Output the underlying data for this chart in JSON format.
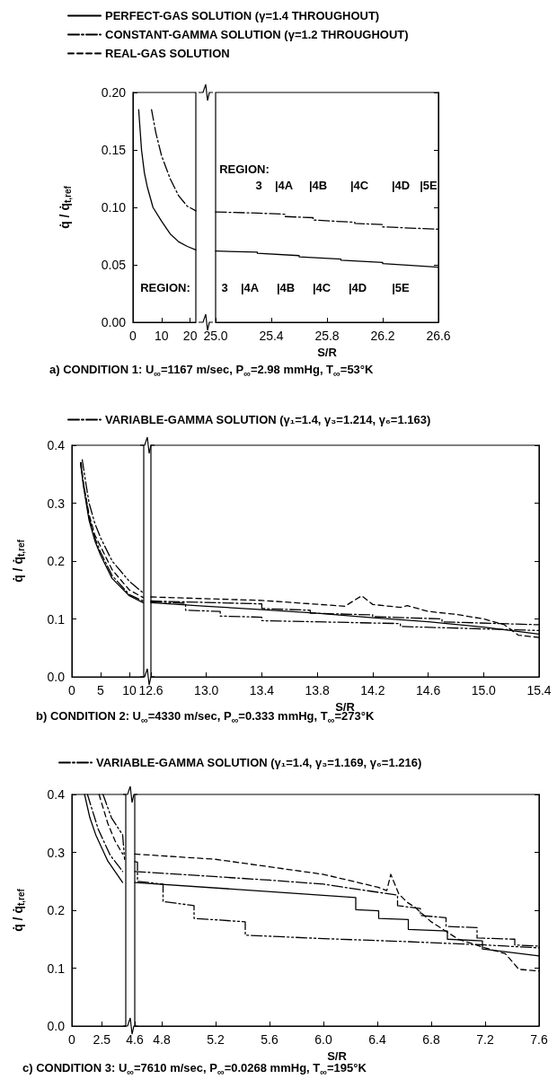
{
  "chart_data": [
    {
      "type": "line",
      "ylabel": "q̇ / q̇$_{t,ref}$",
      "xlim": [
        0,
        22
      ],
      "xticks": [
        0,
        10,
        20
      ],
      "ylim": [
        0,
        0.2
      ],
      "yticks": [
        {
          "value": 0,
          "label": "0.00"
        },
        {
          "value": 0.05,
          "label": "0.05"
        },
        {
          "value": 0.1,
          "label": "0.10"
        },
        {
          "value": 0.15,
          "label": "0.15"
        },
        {
          "value": 0.2,
          "label": "0.20"
        }
      ],
      "grid": false,
      "marker": "none",
      "legend": false,
      "series": [
        {
          "color": "#000000",
          "line_style": "solid",
          "x": [
            2,
            3,
            4,
            5,
            7,
            10,
            13,
            16,
            19,
            22
          ],
          "values": [
            0.185,
            0.15,
            0.13,
            0.118,
            0.1,
            0.088,
            0.077,
            0.07,
            0.066,
            0.063
          ]
        },
        {
          "color": "#000000",
          "line_style": "dashdot",
          "x": [
            6.5,
            8,
            10,
            13,
            16,
            19,
            22
          ],
          "values": [
            0.185,
            0.165,
            0.145,
            0.125,
            0.11,
            0.101,
            0.097
          ]
        }
      ],
      "annotations": [
        "REGION:"
      ]
    },
    {
      "type": "line",
      "xlabel": "S/R",
      "xlim": [
        25,
        26.6
      ],
      "xticks": [
        {
          "value": 25,
          "label": "25.0"
        },
        25.4,
        25.8,
        26.2,
        26.6
      ],
      "ylim": [
        0,
        0.2
      ],
      "yticks": [
        0,
        0.05,
        0.1,
        0.15,
        0.2
      ],
      "tick_labels": "x",
      "grid": false,
      "marker": "none",
      "legend": "top left",
      "series": [
        {
          "name": "PERFECT-GAS SOLUTION (γ=1.4 THROUGHOUT)",
          "color": "#000000",
          "line_style": "solid",
          "x": [
            25,
            25.3,
            25.3,
            25.6,
            25.6,
            25.9,
            25.9,
            26.2,
            26.2,
            26.6
          ],
          "values": [
            0.062,
            0.061,
            0.06,
            0.058,
            0.057,
            0.055,
            0.054,
            0.052,
            0.051,
            0.048
          ]
        },
        {
          "name": "CONSTANT-GAMMA SOLUTION (γ=1.2 THROUGHOUT)",
          "color": "#000000",
          "line_style": "dashdot",
          "x": [
            25,
            25.3,
            25.5,
            25.5,
            25.7,
            25.7,
            26,
            26,
            26.2,
            26.2,
            26.6
          ],
          "values": [
            0.096,
            0.095,
            0.094,
            0.092,
            0.091,
            0.089,
            0.087,
            0.086,
            0.085,
            0.083,
            0.081
          ]
        },
        {
          "name": "REAL-GAS SOLUTION",
          "color": "#000000",
          "line_style": "dashed"
        }
      ],
      "annotations": [
        "REGION:",
        "3",
        "|4A",
        "|4B",
        "|4C",
        "|4D",
        "|5E",
        "3",
        "|4A",
        "|4B",
        "|4C",
        "|4D",
        "|5E",
        "a) CONDITION 1: U$_{∞}$=1167 m/sec, P$_{∞}$=2.98 mmHg, T$_{∞}$=53°K"
      ]
    },
    {
      "type": "line",
      "ylabel": "q̇ / q̇$_{t,ref}$",
      "xlim": [
        0,
        12.5
      ],
      "xticks": [
        0,
        5,
        10
      ],
      "ylim": [
        0,
        0.4
      ],
      "yticks": [
        {
          "value": 0,
          "label": "0.0"
        },
        0.1,
        0.2,
        0.3,
        0.4
      ],
      "grid": false,
      "marker": "none",
      "legend": false,
      "series": [
        {
          "color": "#000000",
          "line_style": "solid",
          "x": [
            1.5,
            2,
            3,
            4,
            5,
            7,
            10,
            12.4
          ],
          "values": [
            0.37,
            0.33,
            0.27,
            0.235,
            0.21,
            0.17,
            0.14,
            0.128
          ]
        },
        {
          "color": "#000000",
          "line_style": "dashdotdot",
          "x": [
            1.8,
            2.5,
            3,
            4,
            5,
            7,
            10,
            12.4
          ],
          "values": [
            0.375,
            0.33,
            0.3,
            0.265,
            0.24,
            0.2,
            0.165,
            0.145
          ]
        },
        {
          "color": "#000000",
          "line_style": "dashed",
          "x": [
            1.6,
            2,
            3,
            4,
            5,
            7,
            10,
            12.4
          ],
          "values": [
            0.37,
            0.335,
            0.28,
            0.245,
            0.225,
            0.185,
            0.15,
            0.137
          ]
        },
        {
          "color": "#000000",
          "line_style": "dashdot",
          "x": [
            1.5,
            2,
            3,
            4,
            5,
            7,
            10,
            12.4
          ],
          "values": [
            0.37,
            0.335,
            0.275,
            0.24,
            0.215,
            0.175,
            0.142,
            0.131
          ]
        }
      ]
    },
    {
      "type": "line",
      "xlabel": "S/R",
      "xlim": [
        12.6,
        15.4
      ],
      "xticks": [
        12.6,
        {
          "value": 13,
          "label": "13.0"
        },
        13.4,
        13.8,
        14.2,
        14.6,
        {
          "value": 15,
          "label": "15.0"
        },
        15.4
      ],
      "ylim": [
        0,
        0.4
      ],
      "yticks": [
        0,
        0.1,
        0.2,
        0.3,
        0.4
      ],
      "tick_labels": "x",
      "grid": false,
      "marker": "none",
      "legend": "top left",
      "series": [
        {
          "color": "#000000",
          "line_style": "solid",
          "x": [
            12.6,
            13,
            13.4,
            13.8,
            14.2,
            14.6,
            15,
            15.4
          ],
          "values": [
            0.128,
            0.122,
            0.116,
            0.11,
            0.102,
            0.095,
            0.086,
            0.074
          ]
        },
        {
          "color": "#000000",
          "line_style": "dashdotdot",
          "x": [
            12.6,
            12.85,
            12.85,
            13.1,
            13.1,
            13.4,
            13.4,
            14.4,
            14.4,
            15.4
          ],
          "values": [
            0.13,
            0.127,
            0.115,
            0.113,
            0.105,
            0.103,
            0.097,
            0.092,
            0.087,
            0.08
          ]
        },
        {
          "color": "#000000",
          "line_style": "dashed",
          "x": [
            12.6,
            13.4,
            14,
            14.12,
            14.2,
            14.4,
            14.45,
            14.6,
            14.8,
            15,
            15.15,
            15.25,
            15.4
          ],
          "values": [
            0.138,
            0.132,
            0.122,
            0.14,
            0.125,
            0.12,
            0.123,
            0.113,
            0.108,
            0.1,
            0.09,
            0.072,
            0.068
          ]
        },
        {
          "name": "VARIABLE-GAMMA SOLUTION (γ₁=1.4, γ₃=1.214, γ₆=1.163)",
          "color": "#000000",
          "line_style": "dashdot",
          "x": [
            12.6,
            13.4,
            13.4,
            13.75,
            13.75,
            14.2,
            14.2,
            14.7,
            14.7,
            15.4
          ],
          "values": [
            0.131,
            0.126,
            0.118,
            0.115,
            0.11,
            0.107,
            0.104,
            0.1,
            0.095,
            0.09
          ]
        }
      ],
      "annotations": [
        "b) CONDITION 2: U$_{∞}$=4330 m/sec, P$_{∞}$=0.333 mmHg, T$_{∞}$=273°K"
      ]
    },
    {
      "type": "line",
      "ylabel": "q̇ / q̇$_{t,ref}$",
      "xlim": [
        0,
        4.5
      ],
      "xticks": [
        0,
        2.5
      ],
      "ylim": [
        0,
        0.4
      ],
      "yticks": [
        {
          "value": 0,
          "label": "0.0"
        },
        0.1,
        0.2,
        0.3,
        0.4
      ],
      "grid": false,
      "marker": "none",
      "legend": false,
      "series": [
        {
          "color": "#000000",
          "line_style": "solid",
          "x": [
            1.06,
            1.5,
            2,
            3,
            4.24
          ],
          "values": [
            0.4,
            0.36,
            0.33,
            0.285,
            0.248
          ]
        },
        {
          "color": "#000000",
          "line_style": "dashdotdot",
          "x": [
            2.6,
            3.3,
            4.24,
            4.4
          ],
          "values": [
            0.4,
            0.36,
            0.33,
            0.288
          ]
        },
        {
          "color": "#000000",
          "line_style": "dashed",
          "x": [
            2.27,
            3,
            3.6,
            4.24
          ],
          "values": [
            0.4,
            0.35,
            0.32,
            0.297
          ]
        },
        {
          "color": "#000000",
          "line_style": "dashdot",
          "x": [
            1.3,
            2.2,
            3.2,
            4.24
          ],
          "values": [
            0.4,
            0.34,
            0.295,
            0.267
          ]
        }
      ]
    },
    {
      "type": "line",
      "xlabel": "S/R",
      "xlim": [
        4.6,
        7.6
      ],
      "xticks": [
        4.6,
        4.8,
        5.2,
        5.6,
        {
          "value": 6,
          "label": "6.0"
        },
        6.4,
        6.8,
        7.2,
        7.6
      ],
      "ylim": [
        0,
        0.4
      ],
      "yticks": [
        0,
        0.1,
        0.2,
        0.3,
        0.4
      ],
      "tick_labels": "x",
      "grid": false,
      "marker": "none",
      "legend": "top left",
      "series": [
        {
          "color": "#000000",
          "line_style": "solid",
          "x": [
            4.6,
            6.24,
            6.24,
            6.41,
            6.41,
            6.63,
            6.63,
            6.92,
            6.92,
            7.18,
            7.18,
            7.6
          ],
          "values": [
            0.248,
            0.222,
            0.201,
            0.199,
            0.186,
            0.184,
            0.167,
            0.164,
            0.15,
            0.147,
            0.133,
            0.121
          ]
        },
        {
          "color": "#000000",
          "line_style": "dashdotdot",
          "x": [
            4.6,
            4.62,
            4.62,
            4.81,
            4.81,
            5.04,
            5.04,
            5.42,
            5.42,
            6,
            6.6,
            7.2,
            7.6
          ],
          "values": [
            0.284,
            0.283,
            0.25,
            0.245,
            0.215,
            0.208,
            0.186,
            0.18,
            0.157,
            0.151,
            0.146,
            0.14,
            0.135
          ]
        },
        {
          "color": "#000000",
          "line_style": "dashed",
          "x": [
            4.6,
            5.2,
            5.6,
            6,
            6.4,
            6.47,
            6.5,
            6.56,
            6.62,
            6.68,
            6.8,
            7,
            7.2,
            7.35,
            7.45,
            7.6
          ],
          "values": [
            0.297,
            0.288,
            0.275,
            0.262,
            0.24,
            0.234,
            0.262,
            0.228,
            0.214,
            0.205,
            0.18,
            0.15,
            0.135,
            0.125,
            0.098,
            0.095
          ]
        },
        {
          "name": "VARIABLE-GAMMA SOLUTION (γ₁=1.4, γ₃=1.169, γ₆=1.216)",
          "color": "#000000",
          "line_style": "dashdot",
          "x": [
            4.6,
            5.6,
            6,
            6.55,
            6.55,
            6.72,
            6.72,
            6.91,
            6.91,
            7.14,
            7.14,
            7.42,
            7.42,
            7.6
          ],
          "values": [
            0.267,
            0.252,
            0.245,
            0.226,
            0.208,
            0.203,
            0.191,
            0.187,
            0.172,
            0.17,
            0.152,
            0.15,
            0.14,
            0.138
          ]
        }
      ],
      "annotations": [
        "c) CONDITION 3: U$_{∞}$=7610 m/sec, P$_{∞}$=0.0268 mmHg, T$_{∞}$=195°K"
      ]
    }
  ]
}
